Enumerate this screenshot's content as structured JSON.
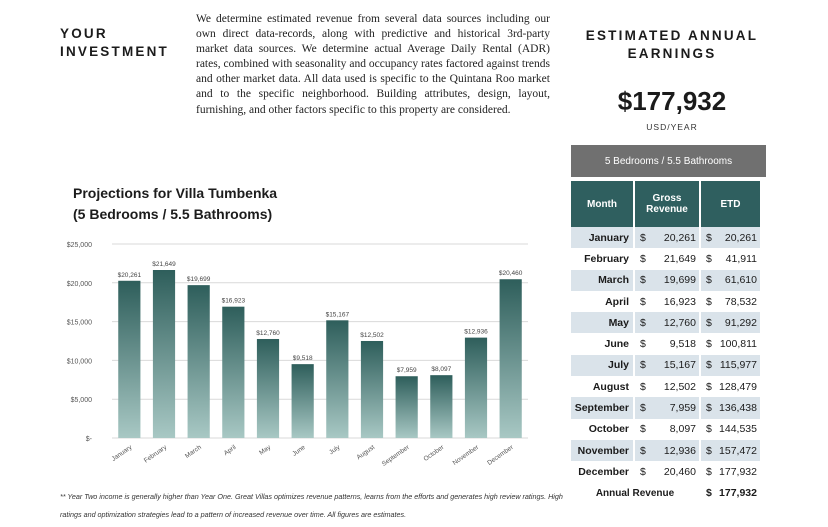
{
  "investment": {
    "title_line1": "YOUR",
    "title_line2": "INVESTMENT",
    "paragraph": "We determine estimated revenue from several data sources including our own direct data-records, along with predictive and historical 3rd-party market data sources. We determine actual Average Daily Rental (ADR) rates, combined with seasonality and  occupancy rates factored against trends and other market data. All data used is  specific to the Quintana Roo market and to the specific neighborhood. Building attributes, design, layout, furnishing, and other factors specific to this property are considered."
  },
  "earnings": {
    "title_line1": "ESTIMATED ANNUAL",
    "title_line2": "EARNINGS",
    "value": "$177,932",
    "unit": "USD/YEAR",
    "banner": "5 Bedrooms / 5.5 Bathrooms"
  },
  "chart_title": {
    "line1": "Projections for Villa Tumbenka",
    "line2": "(5 Bedrooms / 5.5 Bathrooms)"
  },
  "chart_data": {
    "type": "bar",
    "categories": [
      "January",
      "February",
      "March",
      "April",
      "May",
      "June",
      "July",
      "August",
      "September",
      "October",
      "November",
      "December"
    ],
    "values": [
      20261,
      21649,
      19699,
      16923,
      12760,
      9518,
      15167,
      12502,
      7959,
      8097,
      12936,
      20460
    ],
    "data_labels": [
      "$20,261",
      "$21,649",
      "$19,699",
      "$16,923",
      "$12,760",
      "$9,518",
      "$15,167",
      "$12,502",
      "$7,959",
      "$8,097",
      "$12,936",
      "$20,460"
    ],
    "ytick_values": [
      0,
      5000,
      10000,
      15000,
      20000,
      25000
    ],
    "ytick_labels": [
      "$-",
      "$5,000",
      "$10,000",
      "$15,000",
      "$20,000",
      "$25,000"
    ],
    "ylim": [
      0,
      25000
    ],
    "grid": true,
    "legend": "none",
    "colors": {
      "bar_top": "#2e5e5b",
      "bar_bottom": "#a8c8c4",
      "grid": "#d9d9d9"
    }
  },
  "table": {
    "headers": [
      "Month",
      "Gross Revenue",
      "ETD"
    ],
    "rows": [
      {
        "month": "January",
        "gross": "20,261",
        "etd": "20,261"
      },
      {
        "month": "February",
        "gross": "21,649",
        "etd": "41,911"
      },
      {
        "month": "March",
        "gross": "19,699",
        "etd": "61,610"
      },
      {
        "month": "April",
        "gross": "16,923",
        "etd": "78,532"
      },
      {
        "month": "May",
        "gross": "12,760",
        "etd": "91,292"
      },
      {
        "month": "June",
        "gross": "9,518",
        "etd": "100,811"
      },
      {
        "month": "July",
        "gross": "15,167",
        "etd": "115,977"
      },
      {
        "month": "August",
        "gross": "12,502",
        "etd": "128,479"
      },
      {
        "month": "September",
        "gross": "7,959",
        "etd": "136,438"
      },
      {
        "month": "October",
        "gross": "8,097",
        "etd": "144,535"
      },
      {
        "month": "November",
        "gross": "12,936",
        "etd": "157,472"
      },
      {
        "month": "December",
        "gross": "20,460",
        "etd": "177,932"
      }
    ],
    "currency": "$",
    "total_label": "Annual Revenue",
    "total_value": "177,932"
  },
  "footnote": "** Year Two income is generally higher than Year One. Great Villas optimizes revenue patterns, learns from the efforts and generates high review ratings. High ratings and  optimization strategies lead to a pattern of increased revenue over time. All figures are estimates."
}
